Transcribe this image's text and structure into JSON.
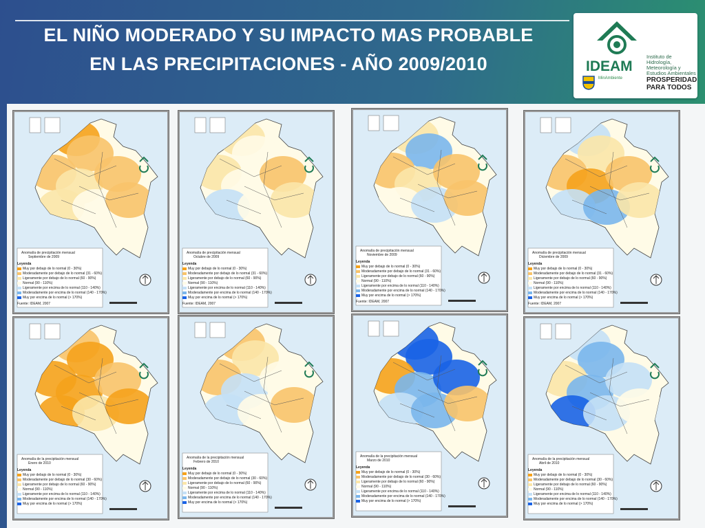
{
  "title": {
    "line1": "EL NIÑO MODERADO Y SU IMPACTO MAS PROBABLE",
    "line2": "EN LAS PRECIPITACIONES - AÑO 2009/2010"
  },
  "logos": {
    "ideam_word": "IDEAM",
    "ideam_subtitle": "Instituto de Hidrología, Meteorología y Estudios Ambientales",
    "ministry": "MinAmbiente",
    "prosperidad": "PROSPERIDAD PARA TODOS"
  },
  "legend_colors": {
    "very_below": "#f5a21c",
    "moderately_below": "#f8c36a",
    "slightly_below": "#fbe6a8",
    "normal": "#fffbe7",
    "slightly_above": "#c4e0f6",
    "moderately_above": "#7ab6ec",
    "very_above": "#1a63e6"
  },
  "maps": [
    {
      "id": "sep-2009",
      "panel_title": "Anomalía de precipitación mensual",
      "month": "Septiembre de 2009",
      "legend_heading": "Leyenda",
      "legend": [
        "Muy por debajo de lo normal (0 - 30%)",
        "Moderadamente por debajo de lo normal (31 - 60%)",
        "Ligeramente por debajo de lo normal (60 - 90%)",
        "Normal (90 - 110%)",
        "Ligeramente por encima de lo normal (110 - 140%)",
        "Moderadamente por encima de lo normal (140 - 170%)",
        "Muy por encima de lo normal (> 170%)"
      ],
      "source": "Fuente: IDEAM, 2007",
      "mix": [
        "very_below",
        "moderately_below",
        "moderately_below",
        "slightly_below",
        "moderately_below",
        "slightly_below",
        "normal",
        "moderately_below"
      ]
    },
    {
      "id": "oct-2009",
      "panel_title": "Anomalía de precipitación mensual",
      "month": "Octubre de 2009",
      "legend_heading": "Leyenda",
      "legend": [
        "Muy por debajo de lo normal (0 - 30%)",
        "Moderadamente por debajo de lo normal (31 - 60%)",
        "Ligeramente por debajo de lo normal (60 - 90%)",
        "Normal (90 - 110%)",
        "Ligeramente por encima de lo normal (110 - 140%)",
        "Moderadamente por encima de lo normal (140 - 170%)",
        "Muy por encima de lo normal (> 170%)"
      ],
      "source": "Fuente: IDEAM, 2007",
      "mix": [
        "slightly_below",
        "normal",
        "slightly_below",
        "normal",
        "moderately_below",
        "slightly_above",
        "normal",
        "slightly_below"
      ]
    },
    {
      "id": "nov-2009",
      "panel_title": "Anomalía de precipitación mensual",
      "month": "Noviembre de 2009",
      "legend_heading": "Leyenda",
      "legend": [
        "Muy por debajo de lo normal (0 - 30%)",
        "Moderadamente por debajo de lo normal (31 - 60%)",
        "Ligeramente por debajo de lo normal (60 - 90%)",
        "Normal (90 - 110%)",
        "Ligeramente por encima de lo normal (110 - 140%)",
        "Moderadamente por encima de lo normal (140 - 170%)",
        "Muy por encima de lo normal (> 170%)"
      ],
      "source": "Fuente: IDEAM, 2007",
      "mix": [
        "slightly_below",
        "moderately_above",
        "moderately_below",
        "slightly_below",
        "moderately_below",
        "normal",
        "slightly_above",
        "moderately_below"
      ]
    },
    {
      "id": "dec-2009",
      "panel_title": "Anomalía de precipitación mensual",
      "month": "Diciembre de 2009",
      "legend_heading": "Leyenda",
      "legend": [
        "Muy por debajo de lo normal (0 - 30%)",
        "Moderadamente por debajo de lo normal (31 - 60%)",
        "Ligeramente por debajo de lo normal (60 - 90%)",
        "Normal (90 - 110%)",
        "Ligeramente por encima de lo normal (110 - 140%)",
        "Moderadamente por encima de lo normal (140 - 170%)",
        "Muy por encima de lo normal (> 170%)"
      ],
      "source": "Fuente: IDEAM, 2007",
      "mix": [
        "slightly_above",
        "slightly_below",
        "moderately_below",
        "very_below",
        "moderately_below",
        "slightly_above",
        "moderately_above",
        "slightly_below"
      ]
    },
    {
      "id": "jan-2010",
      "panel_title": "Anomalía de la precipitación mensual",
      "month": "Enero de 2010",
      "legend_heading": "Leyenda",
      "legend": [
        "Muy por debajo de lo normal (0 - 30%)",
        "Moderadamente por debajo de lo normal (30 - 60%)",
        "Ligeramente por debajo de lo normal (60 - 90%)",
        "Normal (90 - 110%)",
        "Ligeramente por encima de lo normal (110 - 140%)",
        "Moderadamente por encima de lo normal (140 - 170%)",
        "Muy por encima de lo normal (> 170%)"
      ],
      "source": "",
      "mix": [
        "moderately_below",
        "very_below",
        "very_below",
        "very_below",
        "moderately_below",
        "very_below",
        "slightly_below",
        "very_below"
      ]
    },
    {
      "id": "feb-2010",
      "panel_title": "Anomalía de la precipitación mensual",
      "month": "Febrero de 2010",
      "legend_heading": "Leyenda",
      "legend": [
        "Muy por debajo de lo normal (0 - 30%)",
        "Moderadamente por debajo de lo normal (30 - 60%)",
        "Ligeramente por debajo de lo normal (60 - 90%)",
        "Normal (90 - 110%)",
        "Ligeramente por encima de lo normal (110 - 140%)",
        "Moderadamente por encima de lo normal (140 - 170%)",
        "Muy por encima de lo normal (> 170%)"
      ],
      "source": "",
      "mix": [
        "moderately_below",
        "slightly_below",
        "moderately_below",
        "slightly_above",
        "normal",
        "slightly_above",
        "normal",
        "moderately_below"
      ]
    },
    {
      "id": "mar-2010",
      "panel_title": "Anomalía de la precipitación mensual",
      "month": "Marzo de 2010",
      "legend_heading": "Leyenda",
      "legend": [
        "Muy por debajo de lo normal (0 - 30%)",
        "Moderadamente por debajo de lo normal (30 - 60%)",
        "Ligeramente por debajo de lo normal (60 - 90%)",
        "Normal (90 - 110%)",
        "Ligeramente por encima de lo normal (110 - 140%)",
        "Moderadamente por encima de lo normal (140 - 170%)",
        "Muy por encima de lo normal (> 170%)"
      ],
      "source": "",
      "mix": [
        "very_above",
        "very_above",
        "very_below",
        "moderately_above",
        "very_above",
        "slightly_above",
        "moderately_above",
        "moderately_below"
      ]
    },
    {
      "id": "apr-2010",
      "panel_title": "Anomalía de la precipitación mensual",
      "month": "Abril de 2010",
      "legend_heading": "Leyenda",
      "legend": [
        "Muy por debajo de lo normal (0 - 30%)",
        "Moderadamente por debajo de lo normal (30 - 60%)",
        "Ligeramente por debajo de lo normal (60 - 90%)",
        "Normal (90 - 110%)",
        "Ligeramente por encima de lo normal (110 - 140%)",
        "Moderadamente por encima de lo normal (140 - 170%)",
        "Muy por encima de lo normal (> 170%)"
      ],
      "source": "",
      "mix": [
        "slightly_above",
        "moderately_above",
        "slightly_below",
        "moderately_above",
        "slightly_above",
        "very_above",
        "slightly_above",
        "normal"
      ]
    }
  ]
}
